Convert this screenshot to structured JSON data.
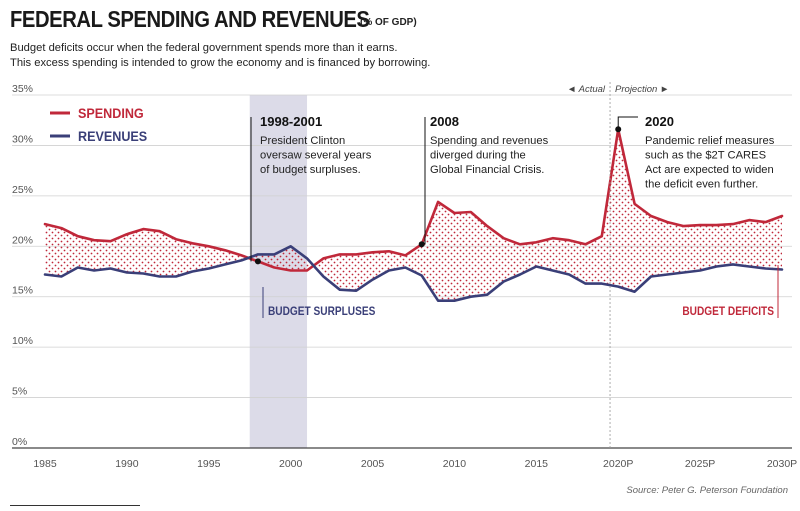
{
  "header": {
    "title": "FEDERAL SPENDING AND REVENUES",
    "title_unit": "(% OF GDP)",
    "subtitle_line1": "Budget deficits occur when the federal government spends more than it earns.",
    "subtitle_line2": "This excess spending is intended to grow the economy and is financed by borrowing."
  },
  "source": "Source: Peter G. Peterson Foundation",
  "colors": {
    "spending": "#c0283a",
    "revenues": "#3a3f78",
    "shade": "#dcdbe8",
    "axis": "#444444"
  },
  "chart_data": {
    "type": "area",
    "x": [
      1985,
      1986,
      1987,
      1988,
      1989,
      1990,
      1991,
      1992,
      1993,
      1994,
      1995,
      1996,
      1997,
      1998,
      1999,
      2000,
      2001,
      2002,
      2003,
      2004,
      2005,
      2006,
      2007,
      2008,
      2009,
      2010,
      2011,
      2012,
      2013,
      2014,
      2015,
      2016,
      2017,
      2018,
      2019,
      2020,
      2021,
      2022,
      2023,
      2024,
      2025,
      2026,
      2027,
      2028,
      2029,
      2030
    ],
    "series": [
      {
        "name": "SPENDING",
        "values": [
          22.2,
          21.8,
          21.0,
          20.6,
          20.5,
          21.2,
          21.7,
          21.5,
          20.7,
          20.3,
          20.0,
          19.6,
          19.1,
          18.5,
          17.9,
          17.6,
          17.6,
          18.8,
          19.2,
          19.2,
          19.4,
          19.5,
          19.1,
          20.2,
          24.4,
          23.3,
          23.4,
          22.0,
          20.8,
          20.2,
          20.4,
          20.8,
          20.6,
          20.2,
          21.0,
          31.6,
          24.2,
          23.0,
          22.4,
          22.0,
          22.1,
          22.1,
          22.2,
          22.6,
          22.4,
          23.0
        ]
      },
      {
        "name": "REVENUES",
        "values": [
          17.2,
          17.0,
          17.9,
          17.6,
          17.8,
          17.4,
          17.3,
          17.0,
          17.0,
          17.5,
          17.8,
          18.2,
          18.6,
          19.2,
          19.2,
          20.0,
          18.8,
          17.0,
          15.7,
          15.6,
          16.7,
          17.6,
          17.9,
          17.1,
          14.6,
          14.6,
          15.0,
          15.2,
          16.5,
          17.2,
          18.0,
          17.6,
          17.2,
          16.3,
          16.3,
          16.0,
          15.5,
          17.0,
          17.2,
          17.4,
          17.6,
          18.0,
          18.2,
          18.0,
          17.8,
          17.7
        ]
      }
    ],
    "ylim": [
      0,
      35
    ],
    "yticks": [
      "35%",
      "30%",
      "25%",
      "20%",
      "15%",
      "10%",
      "5%",
      "0%"
    ],
    "xticks": [
      "1985",
      "1990",
      "1995",
      "2000",
      "2005",
      "2010",
      "2015",
      "2020P",
      "2025P",
      "2030P"
    ],
    "xtick_years": [
      1985,
      1990,
      1995,
      2000,
      2005,
      2010,
      2015,
      2020,
      2025,
      2030
    ],
    "grid": true,
    "legend_position": "top-left",
    "surplus_band": [
      1997.5,
      2001
    ],
    "projection_start": 2019.5,
    "actual_label": "◄ Actual",
    "projection_label": "Projection ►",
    "annotations": [
      {
        "id": "a1998",
        "year": 1998,
        "value": 18.5,
        "title": "1998-2001",
        "lines": [
          "President Clinton",
          "oversaw several years",
          "of budget surpluses."
        ]
      },
      {
        "id": "a2008",
        "year": 2008,
        "value": 20.2,
        "title": "2008",
        "lines": [
          "Spending and revenues",
          "diverged during the",
          "Global Financial Crisis."
        ]
      },
      {
        "id": "a2020",
        "year": 2020,
        "value": 31.6,
        "title": "2020",
        "lines": [
          "Pandemic relief measures",
          "such as the $2T CARES",
          "Act are expected to widen",
          "the deficit even further."
        ]
      }
    ],
    "region_labels": [
      {
        "id": "surpluses",
        "text": "BUDGET SURPLUSES"
      },
      {
        "id": "deficits",
        "text": "BUDGET DEFICITS"
      }
    ]
  }
}
